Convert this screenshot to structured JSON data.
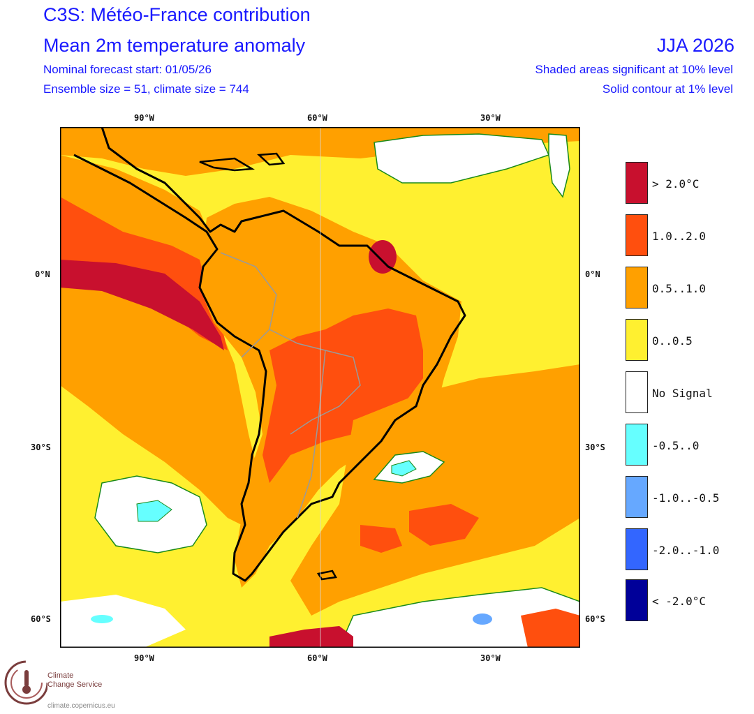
{
  "header": {
    "title": "C3S: Météo-France contribution",
    "subtitle": "Mean 2m temperature anomaly",
    "forecast_start": "Nominal forecast start: 01/05/26",
    "ensemble": "Ensemble size = 51, climate size = 744",
    "season": "JJA 2026",
    "shading_note": "Shaded areas significant at 10% level",
    "contour_note": "Solid contour at 1% level"
  },
  "axes": {
    "top_lon": [
      "90°W",
      "60°W",
      "30°W"
    ],
    "bottom_lon": [
      "90°W",
      "60°W",
      "30°W"
    ],
    "left_lat": [
      "0°N",
      "30°S",
      "60°S"
    ],
    "right_lat": [
      "0°N",
      "30°S",
      "60°S"
    ]
  },
  "legend": [
    {
      "label": "> 2.0°C",
      "color": "#c8102e"
    },
    {
      "label": "1.0..2.0",
      "color": "#ff4f0e"
    },
    {
      "label": "0.5..1.0",
      "color": "#ffa000"
    },
    {
      "label": "0..0.5",
      "color": "#fff030"
    },
    {
      "label": "No Signal",
      "color": "#ffffff"
    },
    {
      "label": "-0.5..0",
      "color": "#66ffff"
    },
    {
      "label": "-1.0..-0.5",
      "color": "#66a8ff"
    },
    {
      "label": "-2.0..-1.0",
      "color": "#3366ff"
    },
    {
      "label": "< -2.0°C",
      "color": "#000099"
    }
  ],
  "logo": {
    "line1": "Climate",
    "line2": "Change Service",
    "url": "climate.copernicus.eu"
  }
}
